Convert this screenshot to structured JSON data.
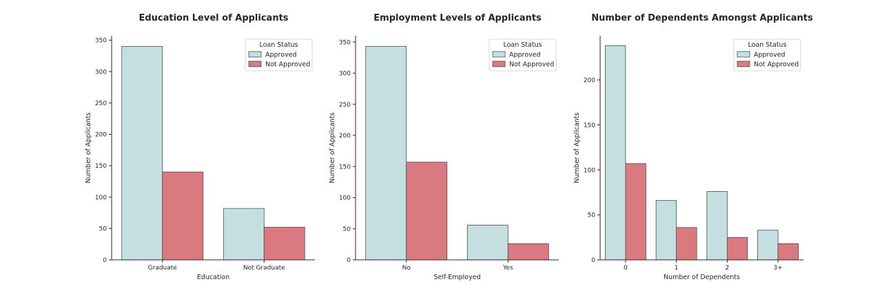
{
  "colors": {
    "approved": "#c3dfe0",
    "not_approved": "#da7a80",
    "bar_edge": "#4a4a4a",
    "axis": "#262626"
  },
  "legend": {
    "title": "Loan Status",
    "entries": [
      "Approved",
      "Not Approved"
    ],
    "placement": "top-right"
  },
  "chart_data": [
    {
      "type": "bar",
      "title": "Education Level of Applicants",
      "xlabel": "Education",
      "ylabel": "Number of Applicants",
      "categories": [
        "Graduate",
        "Not Graduate"
      ],
      "ylim": [
        0,
        357
      ],
      "yticks": [
        0,
        50,
        100,
        150,
        200,
        250,
        300,
        350
      ],
      "series": [
        {
          "name": "Approved",
          "values": [
            340,
            82
          ]
        },
        {
          "name": "Not Approved",
          "values": [
            140,
            52
          ]
        }
      ],
      "grid": false
    },
    {
      "type": "bar",
      "title": "Employment Levels of Applicants",
      "xlabel": "Self-Employed",
      "ylabel": "Number of Applicants",
      "categories": [
        "No",
        "Yes"
      ],
      "ylim": [
        0,
        360
      ],
      "yticks": [
        0,
        50,
        100,
        150,
        200,
        250,
        300,
        350
      ],
      "series": [
        {
          "name": "Approved",
          "values": [
            343,
            56
          ]
        },
        {
          "name": "Not Approved",
          "values": [
            157,
            26
          ]
        }
      ],
      "grid": false
    },
    {
      "type": "bar",
      "title": "Number of Dependents Amongst Applicants",
      "xlabel": "Number of Dependents",
      "ylabel": "Number of Applicants",
      "categories": [
        "0",
        "1",
        "2",
        "3+"
      ],
      "ylim": [
        0,
        249
      ],
      "yticks": [
        0,
        50,
        100,
        150,
        200
      ],
      "series": [
        {
          "name": "Approved",
          "values": [
            238,
            66,
            76,
            33
          ]
        },
        {
          "name": "Not Approved",
          "values": [
            107,
            36,
            25,
            18
          ]
        }
      ],
      "grid": false
    }
  ]
}
